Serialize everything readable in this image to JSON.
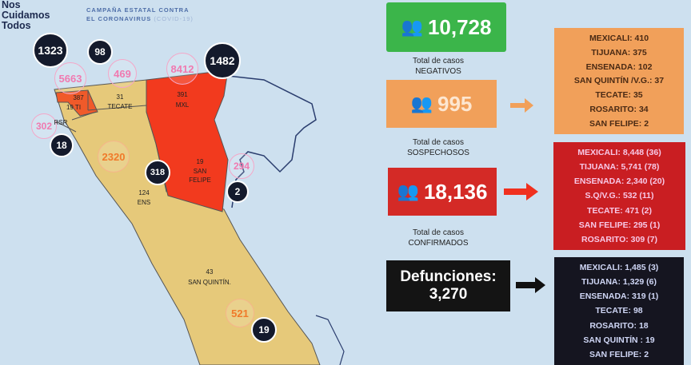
{
  "brand": {
    "line1": "Nos",
    "line2": "Cuidamos",
    "line3": "Todos"
  },
  "campaign": {
    "line1": "CAMPAÑA ESTATAL CONTRA",
    "line2": "EL CORONAVIRUS",
    "line3": "(COVID-19)"
  },
  "map": {
    "bubbles_dark": [
      "1323",
      "98",
      "1482",
      "18",
      "318",
      "2",
      "19"
    ],
    "bubbles_pink": [
      "5663",
      "469",
      "8412",
      "302",
      "294"
    ],
    "bubbles_orange": [
      "2320",
      "521"
    ],
    "labels": {
      "ti_num": "387",
      "ti": "19 TI",
      "rsr": "RSR",
      "tecate_num": "31",
      "tecate": "TECATE",
      "mxl_num": "391",
      "mxl": "MXL",
      "sf_num": "19",
      "sf1": "SAN",
      "sf2": "FELIPE",
      "ens_num": "124",
      "ens": "ENS",
      "sq_num": "43",
      "sq": "SAN QUINTÍN."
    },
    "colors": {
      "state": "#e6c97a",
      "red": "#f23a1e",
      "ti": "#f05a2a"
    }
  },
  "negativos": {
    "value": "10,728",
    "l1": "Total de casos",
    "l2": "NEGATIVOS",
    "color": "#3bb54a"
  },
  "sospechosos": {
    "value": "995",
    "l1": "Total de casos",
    "l2": "SOSPECHOSOS",
    "color": "#f1a05a",
    "list": [
      "MEXICALI: 410",
      "TIJUANA: 375",
      "ENSENADA: 102",
      "SAN QUINTÍN /V.G.: 37",
      "TECATE: 35",
      "ROSARITO: 34",
      "SAN FELIPE: 2"
    ]
  },
  "confirmados": {
    "value": "18,136",
    "l1": "Total de casos",
    "l2": "CONFIRMADOS",
    "color": "#d42a26",
    "list": [
      "MEXICALI: 8,448 (36)",
      "TIJUANA: 5,741 (78)",
      "ENSENADA: 2,340 (20)",
      "S.Q/V.G.: 532 (11)",
      "TECATE: 471 (2)",
      "SAN FELIPE: 295 (1)",
      "ROSARITO: 309 (7)"
    ]
  },
  "defunciones": {
    "l1": "Defunciones:",
    "value": "3,270",
    "color": "#141414",
    "list": [
      "MEXICALI: 1,485 (3)",
      "TIJUANA: 1,329 (6)",
      "ENSENADA: 319 (1)",
      "TECATE: 98",
      "ROSARITO: 18",
      "SAN QUINTÍN : 19",
      "SAN FELIPE: 2"
    ]
  }
}
